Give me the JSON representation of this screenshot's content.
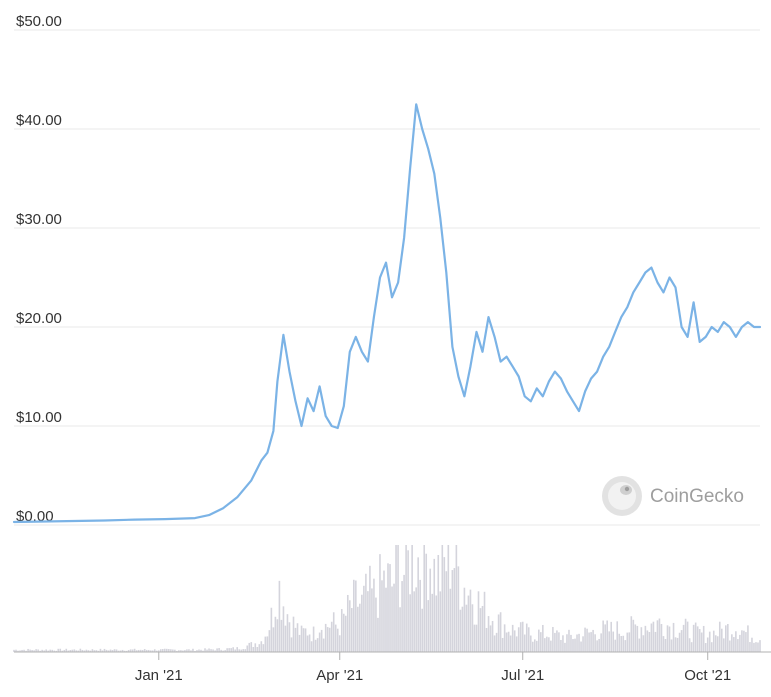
{
  "watermark": {
    "text": "CoinGecko",
    "icon": "gecko-logo-icon"
  },
  "colors": {
    "line": "#7bb3e6",
    "volume": "#d4d4dc",
    "grid": "#e8e8e8",
    "text": "#333333"
  },
  "chart_data": {
    "type": "line",
    "ylim": [
      0,
      50
    ],
    "yticks": [
      {
        "value": 0,
        "label": "$0.00"
      },
      {
        "value": 10,
        "label": "$10.00"
      },
      {
        "value": 20,
        "label": "$20.00"
      },
      {
        "value": 30,
        "label": "$30.00"
      },
      {
        "value": 40,
        "label": "$40.00"
      },
      {
        "value": 50,
        "label": "$50.00"
      }
    ],
    "xlim": [
      "2020-10-21",
      "2021-10-27"
    ],
    "xticks": [
      {
        "date": "2021-01-01",
        "label": "Jan '21"
      },
      {
        "date": "2021-04-01",
        "label": "Apr '21"
      },
      {
        "date": "2021-07-01",
        "label": "Jul '21"
      },
      {
        "date": "2021-10-01",
        "label": "Oct '21"
      }
    ],
    "grid": true,
    "legend": "none",
    "price_series": {
      "x": [
        "2020-10-21",
        "2020-11-05",
        "2020-11-20",
        "2020-12-05",
        "2020-12-20",
        "2021-01-04",
        "2021-01-19",
        "2021-01-26",
        "2021-02-02",
        "2021-02-09",
        "2021-02-16",
        "2021-02-21",
        "2021-02-24",
        "2021-02-27",
        "2021-03-01",
        "2021-03-04",
        "2021-03-07",
        "2021-03-10",
        "2021-03-13",
        "2021-03-16",
        "2021-03-19",
        "2021-03-22",
        "2021-03-25",
        "2021-03-28",
        "2021-03-31",
        "2021-04-03",
        "2021-04-06",
        "2021-04-09",
        "2021-04-12",
        "2021-04-15",
        "2021-04-18",
        "2021-04-21",
        "2021-04-24",
        "2021-04-27",
        "2021-04-30",
        "2021-05-03",
        "2021-05-06",
        "2021-05-09",
        "2021-05-12",
        "2021-05-15",
        "2021-05-18",
        "2021-05-21",
        "2021-05-24",
        "2021-05-27",
        "2021-05-30",
        "2021-06-02",
        "2021-06-05",
        "2021-06-08",
        "2021-06-11",
        "2021-06-14",
        "2021-06-17",
        "2021-06-20",
        "2021-06-23",
        "2021-06-26",
        "2021-06-29",
        "2021-07-02",
        "2021-07-05",
        "2021-07-08",
        "2021-07-11",
        "2021-07-14",
        "2021-07-17",
        "2021-07-20",
        "2021-07-23",
        "2021-07-26",
        "2021-07-29",
        "2021-08-01",
        "2021-08-04",
        "2021-08-07",
        "2021-08-10",
        "2021-08-13",
        "2021-08-16",
        "2021-08-19",
        "2021-08-22",
        "2021-08-25",
        "2021-08-28",
        "2021-08-31",
        "2021-09-03",
        "2021-09-06",
        "2021-09-09",
        "2021-09-12",
        "2021-09-15",
        "2021-09-18",
        "2021-09-21",
        "2021-09-24",
        "2021-09-27",
        "2021-09-30",
        "2021-10-03",
        "2021-10-06",
        "2021-10-09",
        "2021-10-12",
        "2021-10-15",
        "2021-10-18",
        "2021-10-21",
        "2021-10-24",
        "2021-10-27"
      ],
      "y": [
        0.3,
        0.35,
        0.4,
        0.45,
        0.55,
        0.6,
        0.7,
        1.0,
        1.7,
        2.8,
        4.5,
        6.5,
        7.3,
        9.5,
        14.5,
        19.2,
        15.5,
        12.5,
        10.0,
        12.8,
        11.5,
        14.0,
        11.0,
        10.0,
        9.8,
        12.0,
        17.5,
        19.0,
        17.5,
        16.5,
        21.0,
        25.0,
        26.5,
        23.0,
        24.5,
        29.0,
        36.0,
        42.5,
        40.0,
        38.0,
        35.5,
        31.0,
        25.5,
        18.0,
        15.0,
        13.0,
        16.0,
        19.5,
        17.5,
        21.0,
        19.0,
        16.5,
        17.0,
        16.0,
        15.0,
        13.0,
        12.5,
        13.8,
        13.0,
        14.5,
        15.5,
        14.8,
        13.5,
        12.5,
        11.5,
        13.5,
        14.8,
        15.5,
        17.0,
        18.0,
        19.5,
        21.0,
        22.0,
        23.5,
        24.5,
        25.5,
        26.0,
        24.5,
        23.5,
        25.0,
        24.0,
        20.0,
        19.0,
        22.5,
        18.5,
        19.0,
        20.0,
        19.5,
        20.5,
        20.0,
        19.0,
        20.0,
        20.5,
        20.0,
        20.0
      ]
    },
    "volume_series": {
      "x": [
        "2020-10-21",
        "2020-11-20",
        "2020-12-20",
        "2021-01-19",
        "2021-02-02",
        "2021-02-09",
        "2021-02-16",
        "2021-02-21",
        "2021-02-24",
        "2021-02-27",
        "2021-03-01",
        "2021-03-04",
        "2021-03-07",
        "2021-03-10",
        "2021-03-13",
        "2021-03-16",
        "2021-03-19",
        "2021-03-22",
        "2021-03-25",
        "2021-03-28",
        "2021-03-31",
        "2021-04-03",
        "2021-04-06",
        "2021-04-09",
        "2021-04-12",
        "2021-04-15",
        "2021-04-18",
        "2021-04-21",
        "2021-04-24",
        "2021-04-27",
        "2021-04-30",
        "2021-05-03",
        "2021-05-06",
        "2021-05-09",
        "2021-05-12",
        "2021-05-15",
        "2021-05-18",
        "2021-05-21",
        "2021-05-24",
        "2021-05-27",
        "2021-05-30",
        "2021-06-02",
        "2021-06-05",
        "2021-06-08",
        "2021-06-11",
        "2021-06-14",
        "2021-06-17",
        "2021-06-20",
        "2021-06-23",
        "2021-06-26",
        "2021-06-29",
        "2021-07-05",
        "2021-07-14",
        "2021-07-23",
        "2021-08-01",
        "2021-08-10",
        "2021-08-19",
        "2021-08-28",
        "2021-09-06",
        "2021-09-15",
        "2021-09-21",
        "2021-09-27",
        "2021-10-03",
        "2021-10-09",
        "2021-10-15",
        "2021-10-21",
        "2021-10-27"
      ],
      "y": [
        0.3,
        0.3,
        0.3,
        0.3,
        0.4,
        0.5,
        1.0,
        1.5,
        3.0,
        5.5,
        9.5,
        7.0,
        4.5,
        3.5,
        2.5,
        3.0,
        2.5,
        4.0,
        3.5,
        4.0,
        3.5,
        4.5,
        6.0,
        7.0,
        6.5,
        8.0,
        7.5,
        9.0,
        10.0,
        9.0,
        12.0,
        11.0,
        12.5,
        13.0,
        12.0,
        14.0,
        11.0,
        10.5,
        12.5,
        13.5,
        11.0,
        9.0,
        8.5,
        7.0,
        6.0,
        5.5,
        4.5,
        4.0,
        3.5,
        3.0,
        3.0,
        2.5,
        2.5,
        2.0,
        2.5,
        3.0,
        3.0,
        3.5,
        4.0,
        3.5,
        3.0,
        2.5,
        2.5,
        3.0,
        3.5,
        2.5,
        2.0
      ]
    }
  }
}
